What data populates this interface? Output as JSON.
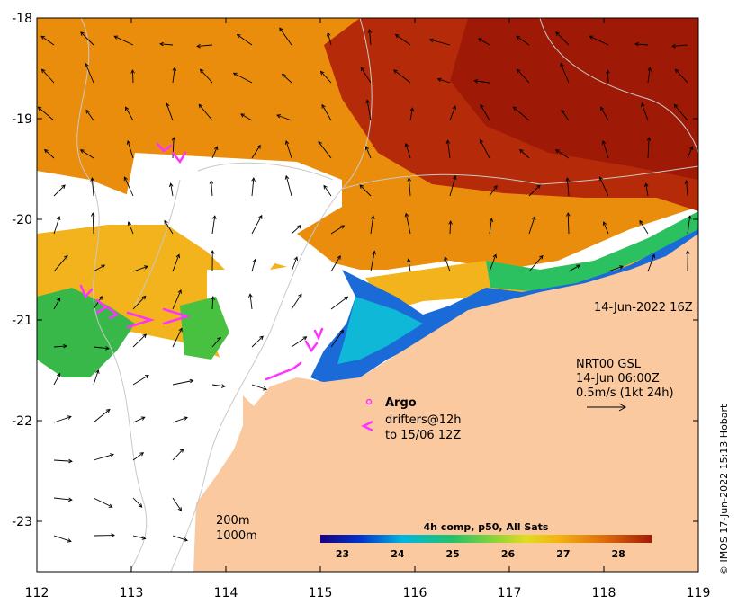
{
  "map": {
    "lon_ticks": [
      "112",
      "113",
      "114",
      "115",
      "116",
      "117",
      "118",
      "119"
    ],
    "lat_ticks": [
      "-18",
      "-19",
      "-20",
      "-21",
      "-22",
      "-23"
    ],
    "lon_range": [
      112,
      119
    ],
    "lat_range": [
      -23.5,
      -18
    ]
  },
  "annotations": {
    "timestamp": "14-Jun-2022 16Z",
    "currents_line1": "NRT00 GSL",
    "currents_line2": "14-Jun 06:00Z",
    "currents_line3": "0.5m/s (1kt 24h)",
    "argo_label": "Argo",
    "drifters_line1": "drifters@12h",
    "drifters_line2": "to 15/06 12Z",
    "isobath_200": "200m",
    "isobath_1000": "1000m"
  },
  "colorbar": {
    "title": "4h comp, p50, All Sats",
    "ticks": [
      "23",
      "24",
      "25",
      "26",
      "27",
      "28"
    ],
    "range": [
      22.6,
      28.6
    ]
  },
  "credit": "© IMOS 17-Jun-2022 15:13 Hobart",
  "colors": {
    "land": "#fbc9a0",
    "cloud": "#ffffff",
    "drifter": "#ff33ff",
    "contour": "#c8c8c8",
    "arrow": "#000000"
  }
}
